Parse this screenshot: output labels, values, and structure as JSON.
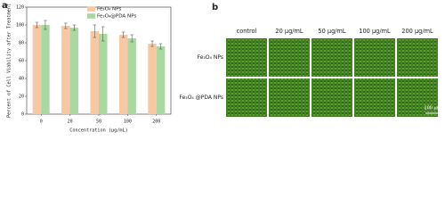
{
  "chart_data": {
    "type": "bar",
    "categories": [
      "0",
      "20",
      "50",
      "100",
      "200"
    ],
    "series": [
      {
        "name": "Fe₃O₄ NPs",
        "color": "#f8c8a2",
        "values": [
          100,
          99,
          93,
          89,
          79
        ],
        "errors": [
          3,
          3,
          7,
          3,
          3
        ]
      },
      {
        "name": "Fe₃O₄@PDA NPs",
        "color": "#a9d9a1",
        "values": [
          100,
          97,
          90,
          85,
          76
        ],
        "errors": [
          5,
          3,
          8,
          4,
          3
        ]
      }
    ],
    "ylim": [
      0,
      120
    ],
    "yticks": [
      0,
      20,
      40,
      60,
      80,
      100,
      120
    ],
    "y_label": "Percent of Cell Viability after Treatment",
    "x_label": "Concentration (μg/mL)",
    "legend": "upper center"
  },
  "panel_labels": [
    "a",
    "b"
  ],
  "image_grid": {
    "columns": [
      "control",
      "20 μg/mL",
      "50 μg/mL",
      "100 μg/mL",
      "200 μg/mL"
    ],
    "rows": [
      "Fe₃O₄ NPs",
      "Fe₃O₄ @PDA NPs"
    ],
    "scale_bar": "100 μm"
  }
}
